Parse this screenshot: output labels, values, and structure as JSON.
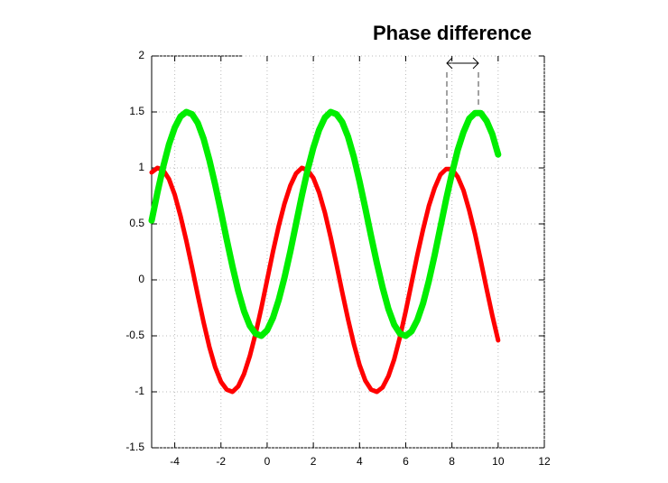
{
  "chart_data": {
    "type": "line",
    "title": "Phase difference",
    "x": [
      -5,
      -4.75,
      -4.5,
      -4.25,
      -4,
      -3.75,
      -3.5,
      -3.25,
      -3,
      -2.75,
      -2.5,
      -2.25,
      -2,
      -1.75,
      -1.5,
      -1.25,
      -1,
      -0.75,
      -0.5,
      -0.25,
      0,
      0.25,
      0.5,
      0.75,
      1,
      1.25,
      1.5,
      1.75,
      2,
      2.25,
      2.5,
      2.75,
      3,
      3.25,
      3.5,
      3.75,
      4,
      4.25,
      4.5,
      4.75,
      5,
      5.25,
      5.5,
      5.75,
      6,
      6.25,
      6.5,
      6.75,
      7,
      7.25,
      7.5,
      7.75,
      8,
      8.25,
      8.5,
      8.75,
      9,
      9.25,
      9.5,
      9.75,
      10
    ],
    "series": [
      {
        "color": "#ff0000",
        "values": [
          0.96,
          1.0,
          0.98,
          0.9,
          0.76,
          0.57,
          0.35,
          0.11,
          -0.14,
          -0.38,
          -0.6,
          -0.78,
          -0.91,
          -0.98,
          -1.0,
          -0.95,
          -0.84,
          -0.68,
          -0.48,
          -0.25,
          0,
          0.25,
          0.48,
          0.68,
          0.84,
          0.95,
          1.0,
          0.98,
          0.91,
          0.78,
          0.6,
          0.38,
          0.14,
          -0.11,
          -0.35,
          -0.57,
          -0.76,
          -0.9,
          -0.98,
          -1.0,
          -0.96,
          -0.86,
          -0.71,
          -0.51,
          -0.28,
          -0.03,
          0.22,
          0.45,
          0.66,
          0.82,
          0.94,
          0.99,
          0.99,
          0.92,
          0.8,
          0.62,
          0.41,
          0.17,
          -0.08,
          -0.32,
          -0.54
        ]
      },
      {
        "color": "#00ee00",
        "values": [
          0.53,
          0.78,
          1.01,
          1.21,
          1.36,
          1.46,
          1.5,
          1.48,
          1.4,
          1.26,
          1.07,
          0.85,
          0.61,
          0.36,
          0.12,
          -0.1,
          -0.28,
          -0.41,
          -0.48,
          -0.5,
          -0.45,
          -0.34,
          -0.18,
          0.02,
          0.25,
          0.5,
          0.75,
          0.98,
          1.18,
          1.34,
          1.45,
          1.5,
          1.48,
          1.41,
          1.28,
          1.1,
          0.88,
          0.64,
          0.39,
          0.15,
          -0.07,
          -0.26,
          -0.4,
          -0.48,
          -0.5,
          -0.46,
          -0.36,
          -0.21,
          -0.01,
          0.22,
          0.47,
          0.72,
          0.95,
          1.16,
          1.32,
          1.44,
          1.49,
          1.49,
          1.42,
          1.3,
          1.12
        ]
      }
    ],
    "xlim": [
      -5,
      12
    ],
    "xticks": [
      -4,
      -2,
      0,
      2,
      4,
      6,
      8,
      10,
      12
    ],
    "ylim": [
      -1.5,
      2
    ],
    "yticks": [
      -1.5,
      -1,
      -0.5,
      0,
      0.5,
      1,
      1.5,
      2
    ],
    "grid": true
  }
}
